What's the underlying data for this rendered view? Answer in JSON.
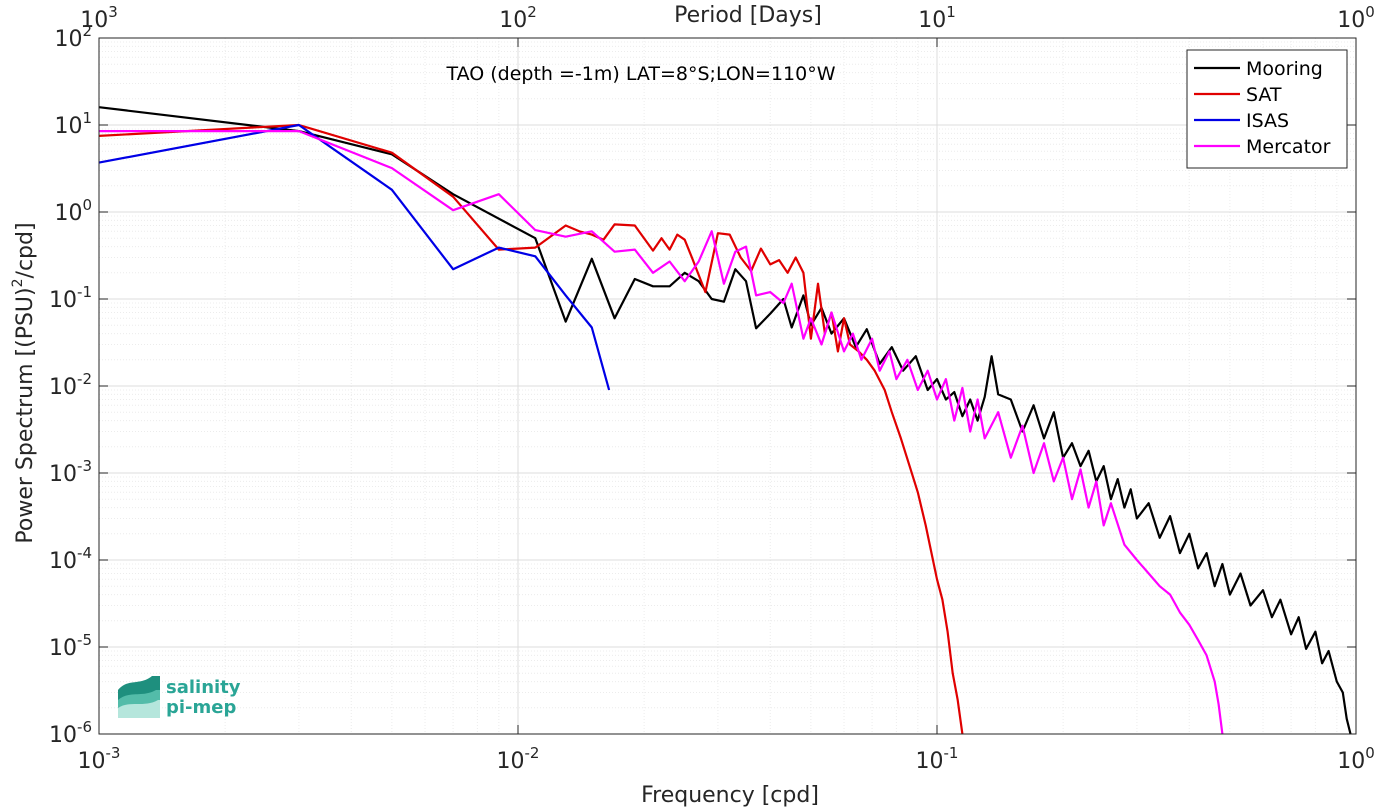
{
  "chart_data": {
    "type": "line",
    "title": "TAO (depth =-1m) LAT=8°S;LON=110°W",
    "xlabel": "Frequency [cpd]",
    "ylabel": "Power Spectrum [(PSU)",
    "ylabel_sup": "2",
    "ylabel_tail": "/cpd]",
    "top_xlabel": "Period [Days]",
    "x_scale": "log",
    "y_scale": "log",
    "xlim": [
      0.001,
      1
    ],
    "ylim": [
      1e-06,
      100
    ],
    "grid": true,
    "legend_position": "top-right",
    "x_ticks": [
      {
        "base": "10",
        "exp": "-3"
      },
      {
        "base": "10",
        "exp": "-2"
      },
      {
        "base": "10",
        "exp": "-1"
      },
      {
        "base": "10",
        "exp": "0"
      }
    ],
    "top_ticks": [
      {
        "base": "10",
        "exp": "3"
      },
      {
        "base": "10",
        "exp": "2"
      },
      {
        "base": "10",
        "exp": "1"
      },
      {
        "base": "10",
        "exp": "0"
      }
    ],
    "y_ticks": [
      {
        "base": "10",
        "exp": "2"
      },
      {
        "base": "10",
        "exp": "1"
      },
      {
        "base": "10",
        "exp": "0"
      },
      {
        "base": "10",
        "exp": "-1"
      },
      {
        "base": "10",
        "exp": "-2"
      },
      {
        "base": "10",
        "exp": "-3"
      },
      {
        "base": "10",
        "exp": "-4"
      },
      {
        "base": "10",
        "exp": "-5"
      },
      {
        "base": "10",
        "exp": "-6"
      }
    ],
    "series": [
      {
        "name": "Mooring",
        "color": "#000000",
        "points": [
          [
            0.001,
            16
          ],
          [
            0.003,
            8.5
          ],
          [
            0.005,
            4.6
          ],
          [
            0.007,
            1.6
          ],
          [
            0.011,
            0.5
          ],
          [
            0.013,
            0.055
          ],
          [
            0.015,
            0.29
          ],
          [
            0.017,
            0.06
          ],
          [
            0.019,
            0.17
          ],
          [
            0.021,
            0.14
          ],
          [
            0.023,
            0.14
          ],
          [
            0.025,
            0.2
          ],
          [
            0.027,
            0.16
          ],
          [
            0.029,
            0.1
          ],
          [
            0.031,
            0.093
          ],
          [
            0.033,
            0.22
          ],
          [
            0.035,
            0.16
          ],
          [
            0.037,
            0.046
          ],
          [
            0.04,
            0.068
          ],
          [
            0.043,
            0.1
          ],
          [
            0.045,
            0.047
          ],
          [
            0.048,
            0.11
          ],
          [
            0.05,
            0.05
          ],
          [
            0.053,
            0.079
          ],
          [
            0.056,
            0.04
          ],
          [
            0.06,
            0.06
          ],
          [
            0.064,
            0.028
          ],
          [
            0.068,
            0.045
          ],
          [
            0.073,
            0.018
          ],
          [
            0.078,
            0.028
          ],
          [
            0.083,
            0.015
          ],
          [
            0.089,
            0.022
          ],
          [
            0.095,
            0.009
          ],
          [
            0.1,
            0.012
          ],
          [
            0.105,
            0.007
          ],
          [
            0.11,
            0.0085
          ],
          [
            0.115,
            0.0045
          ],
          [
            0.12,
            0.007
          ],
          [
            0.125,
            0.004
          ],
          [
            0.13,
            0.0075
          ],
          [
            0.135,
            0.022
          ],
          [
            0.14,
            0.008
          ],
          [
            0.15,
            0.007
          ],
          [
            0.16,
            0.003
          ],
          [
            0.17,
            0.006
          ],
          [
            0.18,
            0.0025
          ],
          [
            0.19,
            0.005
          ],
          [
            0.2,
            0.0015
          ],
          [
            0.21,
            0.0022
          ],
          [
            0.22,
            0.0012
          ],
          [
            0.23,
            0.0018
          ],
          [
            0.24,
            0.0008
          ],
          [
            0.25,
            0.0012
          ],
          [
            0.26,
            0.0005
          ],
          [
            0.27,
            0.00085
          ],
          [
            0.28,
            0.0004
          ],
          [
            0.29,
            0.00065
          ],
          [
            0.3,
            0.0003
          ],
          [
            0.32,
            0.00045
          ],
          [
            0.34,
            0.00018
          ],
          [
            0.36,
            0.00032
          ],
          [
            0.38,
            0.00012
          ],
          [
            0.4,
            0.0002
          ],
          [
            0.42,
            8e-05
          ],
          [
            0.44,
            0.00012
          ],
          [
            0.46,
            5e-05
          ],
          [
            0.48,
            9e-05
          ],
          [
            0.5,
            4e-05
          ],
          [
            0.53,
            7e-05
          ],
          [
            0.56,
            3e-05
          ],
          [
            0.6,
            4.5e-05
          ],
          [
            0.63,
            2.2e-05
          ],
          [
            0.66,
            3.5e-05
          ],
          [
            0.7,
            1.4e-05
          ],
          [
            0.73,
            2.2e-05
          ],
          [
            0.76,
            9.5e-06
          ],
          [
            0.8,
            1.5e-05
          ],
          [
            0.83,
            6.5e-06
          ],
          [
            0.86,
            9e-06
          ],
          [
            0.9,
            4e-06
          ],
          [
            0.93,
            3e-06
          ],
          [
            0.95,
            1.5e-06
          ],
          [
            0.97,
            1e-06
          ]
        ]
      },
      {
        "name": "SAT",
        "color": "#e00000",
        "points": [
          [
            0.001,
            7.5
          ],
          [
            0.003,
            10
          ],
          [
            0.005,
            4.8
          ],
          [
            0.007,
            1.5
          ],
          [
            0.009,
            0.37
          ],
          [
            0.011,
            0.39
          ],
          [
            0.013,
            0.7
          ],
          [
            0.014,
            0.6
          ],
          [
            0.015,
            0.55
          ],
          [
            0.016,
            0.48
          ],
          [
            0.017,
            0.72
          ],
          [
            0.019,
            0.7
          ],
          [
            0.021,
            0.36
          ],
          [
            0.022,
            0.5
          ],
          [
            0.023,
            0.37
          ],
          [
            0.024,
            0.55
          ],
          [
            0.025,
            0.48
          ],
          [
            0.026,
            0.3
          ],
          [
            0.028,
            0.12
          ],
          [
            0.03,
            0.57
          ],
          [
            0.032,
            0.55
          ],
          [
            0.034,
            0.3
          ],
          [
            0.036,
            0.21
          ],
          [
            0.038,
            0.38
          ],
          [
            0.04,
            0.25
          ],
          [
            0.042,
            0.28
          ],
          [
            0.044,
            0.2
          ],
          [
            0.046,
            0.3
          ],
          [
            0.048,
            0.2
          ],
          [
            0.05,
            0.035
          ],
          [
            0.052,
            0.15
          ],
          [
            0.054,
            0.04
          ],
          [
            0.056,
            0.07
          ],
          [
            0.058,
            0.025
          ],
          [
            0.06,
            0.06
          ],
          [
            0.062,
            0.03
          ],
          [
            0.065,
            0.025
          ],
          [
            0.068,
            0.02
          ],
          [
            0.071,
            0.015
          ],
          [
            0.075,
            0.009
          ],
          [
            0.078,
            0.005
          ],
          [
            0.082,
            0.0025
          ],
          [
            0.086,
            0.0012
          ],
          [
            0.09,
            0.0006
          ],
          [
            0.094,
            0.00025
          ],
          [
            0.097,
            0.00012
          ],
          [
            0.1,
            6e-05
          ],
          [
            0.103,
            3.5e-05
          ],
          [
            0.106,
            1.5e-05
          ],
          [
            0.109,
            5e-06
          ],
          [
            0.112,
            2.5e-06
          ],
          [
            0.115,
            1e-06
          ]
        ]
      },
      {
        "name": "ISAS",
        "color": "#0000e6",
        "points": [
          [
            0.001,
            3.7
          ],
          [
            0.003,
            10
          ],
          [
            0.005,
            1.8
          ],
          [
            0.007,
            0.22
          ],
          [
            0.009,
            0.39
          ],
          [
            0.011,
            0.31
          ],
          [
            0.013,
            0.11
          ],
          [
            0.015,
            0.047
          ],
          [
            0.0165,
            0.009
          ]
        ]
      },
      {
        "name": "Mercator",
        "color": "#ff00ff",
        "points": [
          [
            0.001,
            8.5
          ],
          [
            0.003,
            8.5
          ],
          [
            0.005,
            3.2
          ],
          [
            0.007,
            1.05
          ],
          [
            0.009,
            1.6
          ],
          [
            0.011,
            0.62
          ],
          [
            0.013,
            0.52
          ],
          [
            0.015,
            0.6
          ],
          [
            0.017,
            0.35
          ],
          [
            0.019,
            0.37
          ],
          [
            0.021,
            0.2
          ],
          [
            0.023,
            0.27
          ],
          [
            0.025,
            0.16
          ],
          [
            0.027,
            0.27
          ],
          [
            0.029,
            0.6
          ],
          [
            0.031,
            0.15
          ],
          [
            0.033,
            0.35
          ],
          [
            0.035,
            0.4
          ],
          [
            0.037,
            0.11
          ],
          [
            0.04,
            0.12
          ],
          [
            0.043,
            0.09
          ],
          [
            0.045,
            0.15
          ],
          [
            0.048,
            0.035
          ],
          [
            0.05,
            0.06
          ],
          [
            0.053,
            0.03
          ],
          [
            0.056,
            0.07
          ],
          [
            0.06,
            0.025
          ],
          [
            0.063,
            0.04
          ],
          [
            0.066,
            0.02
          ],
          [
            0.07,
            0.035
          ],
          [
            0.073,
            0.015
          ],
          [
            0.077,
            0.025
          ],
          [
            0.08,
            0.012
          ],
          [
            0.085,
            0.02
          ],
          [
            0.09,
            0.009
          ],
          [
            0.095,
            0.015
          ],
          [
            0.1,
            0.007
          ],
          [
            0.105,
            0.012
          ],
          [
            0.11,
            0.004
          ],
          [
            0.115,
            0.0095
          ],
          [
            0.12,
            0.003
          ],
          [
            0.125,
            0.007
          ],
          [
            0.13,
            0.0025
          ],
          [
            0.14,
            0.005
          ],
          [
            0.15,
            0.0015
          ],
          [
            0.16,
            0.0035
          ],
          [
            0.17,
            0.001
          ],
          [
            0.18,
            0.0022
          ],
          [
            0.19,
            0.0008
          ],
          [
            0.2,
            0.0015
          ],
          [
            0.21,
            0.0005
          ],
          [
            0.22,
            0.0011
          ],
          [
            0.23,
            0.0004
          ],
          [
            0.24,
            0.0008
          ],
          [
            0.25,
            0.00025
          ],
          [
            0.26,
            0.00045
          ],
          [
            0.28,
            0.00015
          ],
          [
            0.3,
            0.0001
          ],
          [
            0.32,
            7e-05
          ],
          [
            0.34,
            5e-05
          ],
          [
            0.36,
            4e-05
          ],
          [
            0.38,
            2.5e-05
          ],
          [
            0.4,
            1.8e-05
          ],
          [
            0.42,
            1.2e-05
          ],
          [
            0.44,
            8e-06
          ],
          [
            0.46,
            4e-06
          ],
          [
            0.47,
            2.2e-06
          ],
          [
            0.48,
            1e-06
          ]
        ]
      }
    ]
  },
  "logo": {
    "line1": "salinity",
    "line2": "pi-mep"
  }
}
